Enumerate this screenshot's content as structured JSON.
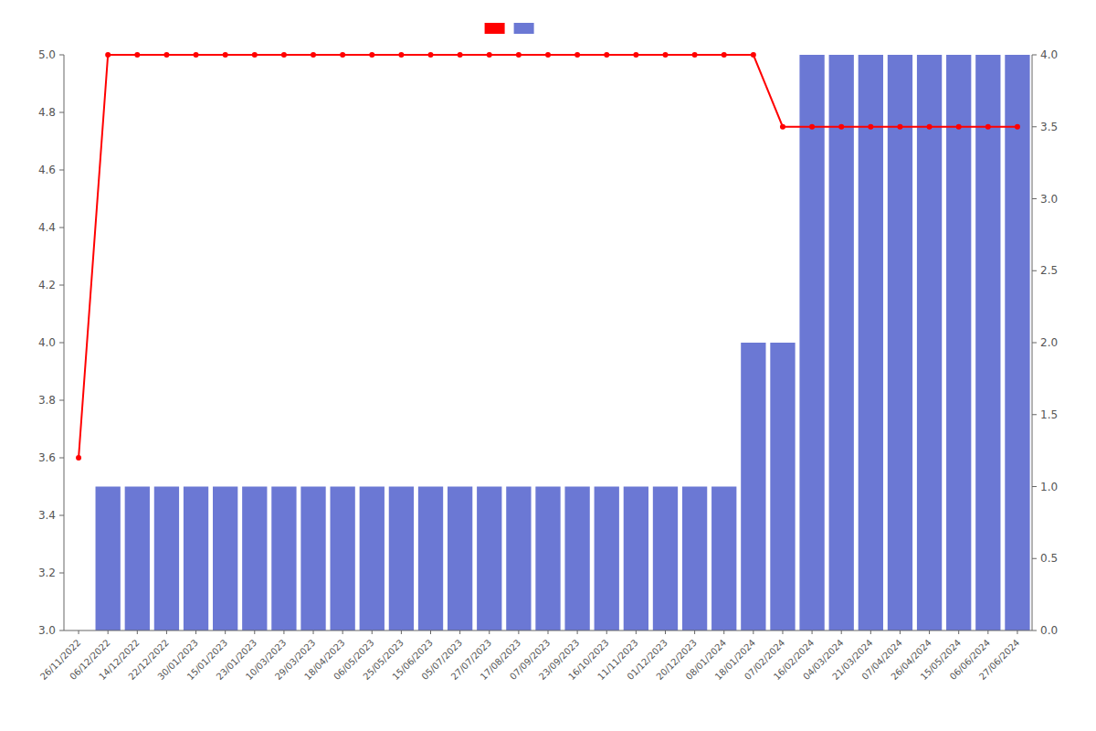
{
  "chart_data": {
    "type": "bar",
    "categories": [
      "26/11/2022",
      "06/12/2022",
      "14/12/2022",
      "22/12/2022",
      "30/01/2023",
      "15/01/2023",
      "23/01/2023",
      "10/03/2023",
      "29/03/2023",
      "18/04/2023",
      "06/05/2023",
      "25/05/2023",
      "15/06/2023",
      "05/07/2023",
      "27/07/2023",
      "17/08/2023",
      "07/09/2023",
      "23/09/2023",
      "16/10/2023",
      "11/11/2023",
      "01/12/2023",
      "20/12/2023",
      "08/01/2024",
      "18/01/2024",
      "07/02/2024",
      "16/02/2024",
      "04/03/2024",
      "21/03/2024",
      "07/04/2024",
      "26/04/2024",
      "15/05/2024",
      "06/06/2024",
      "27/06/2024"
    ],
    "series": [
      {
        "type": "line",
        "axis": "y",
        "color": "#ff0000",
        "marker": "circle",
        "line_style": "solid",
        "values": [
          3.6,
          5.0,
          5.0,
          5.0,
          5.0,
          5.0,
          5.0,
          5.0,
          5.0,
          5.0,
          5.0,
          5.0,
          5.0,
          5.0,
          5.0,
          5.0,
          5.0,
          5.0,
          5.0,
          5.0,
          5.0,
          5.0,
          5.0,
          5.0,
          4.75,
          4.75,
          4.75,
          4.75,
          4.75,
          4.75,
          4.75,
          4.75,
          4.75
        ]
      },
      {
        "type": "bar",
        "axis": "y2",
        "color": "#6b78d4",
        "values": [
          0,
          1,
          1,
          1,
          1,
          1,
          1,
          1,
          1,
          1,
          1,
          1,
          1,
          1,
          1,
          1,
          1,
          1,
          1,
          1,
          1,
          1,
          1,
          2,
          2,
          4,
          4,
          4,
          4,
          4,
          4,
          4,
          4
        ]
      }
    ],
    "ylim": [
      3.0,
      5.0
    ],
    "yticks": [
      {
        "value": 3.0,
        "label": "3.0"
      },
      3.2,
      3.4,
      3.6,
      3.8,
      {
        "value": 4.0,
        "label": "4.0"
      },
      4.2,
      4.4,
      4.6,
      4.8,
      {
        "value": 5.0,
        "label": "5.0"
      }
    ],
    "y2lim": [
      0,
      4.0
    ],
    "y2ticks": [
      {
        "value": 0,
        "label": "0.0"
      },
      0.5,
      {
        "value": 1.0,
        "label": "1.0"
      },
      1.5,
      {
        "value": 2.0,
        "label": "2.0"
      },
      2.5,
      {
        "value": 3.0,
        "label": "3.0"
      },
      3.5,
      {
        "value": 4.0,
        "label": "4.0"
      }
    ],
    "grid": false,
    "legend": "upper center"
  }
}
